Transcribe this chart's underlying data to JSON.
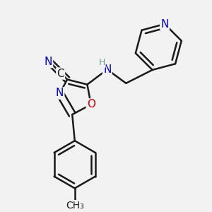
{
  "bg_color": "#f2f2f2",
  "bond_color": "#1a1a1a",
  "bond_width": 1.8,
  "atom_colors": {
    "N": "#0000cc",
    "O": "#cc0000",
    "C": "#1a1a1a",
    "H": "#6a9a8a"
  },
  "font_size_atom": 11,
  "font_size_small": 9,
  "font_size_methyl": 10
}
